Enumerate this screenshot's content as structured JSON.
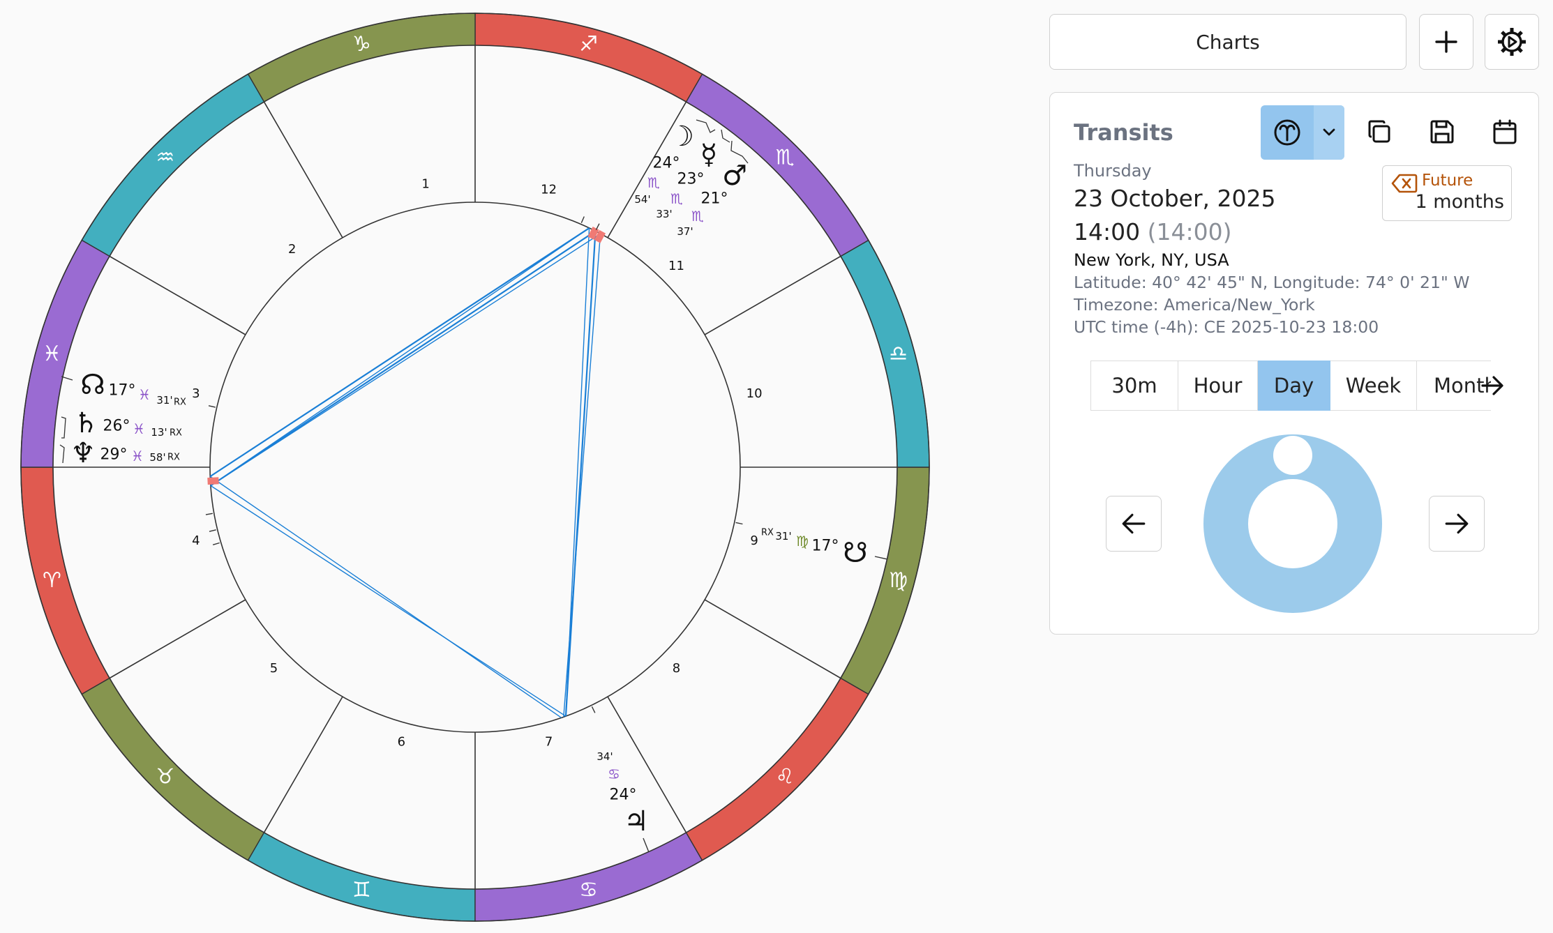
{
  "header": {
    "charts_label": "Charts",
    "plus_icon": "plus-icon",
    "gear_icon": "gear-icon"
  },
  "panel": {
    "title": "Transits",
    "weekday": "Thursday",
    "date": "23 October, 2025",
    "time": "14:00",
    "time_paren": "(14:00)",
    "place": "New York, NY, USA",
    "coords": "Latitude: 40° 42' 45\" N,  Longitude: 74° 0' 21\" W",
    "timezone": "Timezone: America/New_York",
    "utc": "UTC time (-4h): CE 2025-10-23 18:00",
    "badge_line1": "Future",
    "badge_line2": "1 months",
    "toolbar_icons": [
      "aries-icon",
      "chevron-down-icon",
      "copy-icon",
      "save-icon",
      "calendar-icon"
    ],
    "steps": [
      {
        "label": "30m",
        "active": false
      },
      {
        "label": "Hour",
        "active": false
      },
      {
        "label": "Day",
        "active": true
      },
      {
        "label": "Week",
        "active": false
      },
      {
        "label": "Month",
        "active": false
      }
    ]
  },
  "wheel": {
    "house_numbers": [
      "1",
      "2",
      "3",
      "4",
      "5",
      "6",
      "7",
      "8",
      "9",
      "10",
      "11",
      "12"
    ],
    "sign_glyphs": [
      "♈",
      "♉",
      "♊",
      "♋",
      "♌",
      "♍",
      "♎",
      "♏",
      "♐",
      "♑",
      "♒",
      "♓"
    ],
    "sign_colors": {
      "fire": "#e05a50",
      "earth": "#86954f",
      "air": "#42afbf",
      "water": "#9a6bd2"
    },
    "aspect_color": "#1a7fd6",
    "planets": [
      {
        "name": "moon",
        "glyph": "☽",
        "degree": "24°",
        "sign": "♏",
        "minutes": "54'",
        "rx": ""
      },
      {
        "name": "mercury",
        "glyph": "☿",
        "degree": "23°",
        "sign": "♏",
        "minutes": "33'",
        "rx": ""
      },
      {
        "name": "mars",
        "glyph": "♂",
        "degree": "21°",
        "sign": "♏",
        "minutes": "37'",
        "rx": ""
      },
      {
        "name": "north-node",
        "glyph": "☊",
        "degree": "17°",
        "sign": "♓",
        "minutes": "31'",
        "rx": "RX"
      },
      {
        "name": "saturn",
        "glyph": "♄",
        "degree": "26°",
        "sign": "♓",
        "minutes": "13'",
        "rx": "RX"
      },
      {
        "name": "neptune",
        "glyph": "♆",
        "degree": "29°",
        "sign": "♓",
        "minutes": "58'",
        "rx": "RX"
      },
      {
        "name": "south-node",
        "glyph": "☋",
        "degree": "17°",
        "sign": "♍",
        "minutes": "31'",
        "rx": "RX"
      },
      {
        "name": "jupiter",
        "glyph": "♃",
        "degree": "24°",
        "sign": "♋",
        "minutes": "34'",
        "rx": ""
      }
    ]
  },
  "day_indicator": {
    "ring_color": "#9ccbeb",
    "progress": 0
  }
}
